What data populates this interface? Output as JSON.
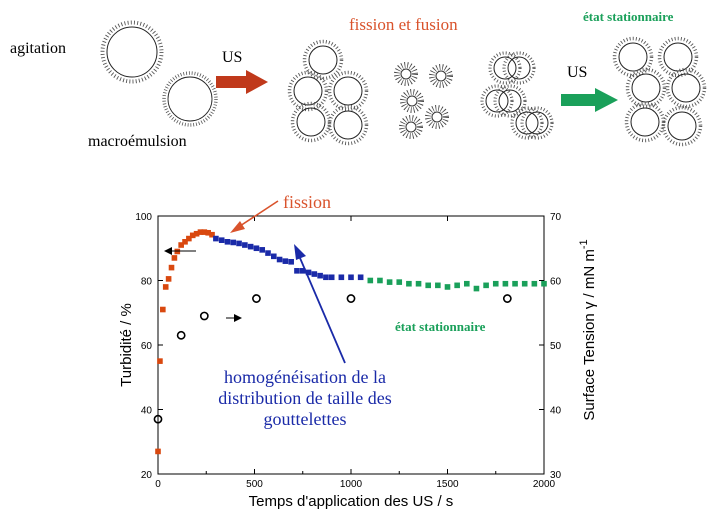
{
  "diagram": {
    "label_agitation": "agitation",
    "label_macroemulsion": "macroémulsion",
    "label_us_1": "US",
    "label_fission_fusion": "fission et fusion",
    "label_etat_stationnaire_top": "état stationnaire",
    "label_us_2": "US",
    "colors": {
      "arrow_us_1": "#c0391b",
      "arrow_us_2": "#1aa05a",
      "fission_fusion_text": "#d9532c",
      "stationnaire_text": "#1aa05a"
    }
  },
  "chart_data": {
    "type": "scatter",
    "xlabel": "Temps d'application des US / s",
    "ylabel_left": "Turbidité / %",
    "ylabel_right": "Surface Tension γ / mN m",
    "ylabel_right_exponent": "-1",
    "xlim": [
      0,
      2000
    ],
    "ylim_left": [
      20,
      100
    ],
    "ylim_right": [
      30,
      70
    ],
    "x_ticks": [
      "0",
      "500",
      "1000",
      "1500",
      "2000"
    ],
    "y_left_ticks": [
      "20",
      "40",
      "60",
      "80",
      "100"
    ],
    "y_right_ticks": [
      "30",
      "40",
      "50",
      "60",
      "70"
    ],
    "grid": false,
    "annotations": {
      "fission": "fission",
      "homogeneisation": [
        "homogénéisation de la",
        "distribution de taille des",
        "gouttelettes"
      ],
      "etat_stationnaire": "état stationnaire"
    },
    "series": [
      {
        "axis": "left",
        "marker": "square",
        "color": "#d9480f",
        "points": [
          [
            0,
            27
          ],
          [
            10,
            55
          ],
          [
            25,
            71
          ],
          [
            40,
            78
          ],
          [
            55,
            80.5
          ],
          [
            70,
            84
          ],
          [
            85,
            87
          ],
          [
            100,
            89
          ],
          [
            120,
            91
          ],
          [
            140,
            92
          ],
          [
            160,
            93
          ],
          [
            180,
            94
          ],
          [
            200,
            94.5
          ],
          [
            220,
            95
          ],
          [
            240,
            95
          ],
          [
            260,
            94.8
          ],
          [
            280,
            94.2
          ]
        ]
      },
      {
        "axis": "left",
        "marker": "square",
        "color": "#1a2aa8",
        "points": [
          [
            300,
            93
          ],
          [
            330,
            92.5
          ],
          [
            360,
            92
          ],
          [
            390,
            91.8
          ],
          [
            420,
            91.5
          ],
          [
            450,
            91
          ],
          [
            480,
            90.5
          ],
          [
            510,
            90
          ],
          [
            540,
            89.5
          ],
          [
            570,
            88.5
          ],
          [
            600,
            87.5
          ],
          [
            630,
            86.5
          ],
          [
            660,
            86
          ],
          [
            690,
            85.8
          ],
          [
            720,
            83
          ],
          [
            750,
            83
          ],
          [
            780,
            82.5
          ],
          [
            810,
            82
          ],
          [
            840,
            81.5
          ],
          [
            870,
            81
          ],
          [
            900,
            81
          ],
          [
            950,
            81
          ],
          [
            1000,
            81
          ],
          [
            1050,
            81
          ]
        ]
      },
      {
        "axis": "left",
        "marker": "square",
        "color": "#1aa05a",
        "points": [
          [
            1100,
            80
          ],
          [
            1150,
            80
          ],
          [
            1200,
            79.5
          ],
          [
            1250,
            79.5
          ],
          [
            1300,
            79
          ],
          [
            1350,
            79
          ],
          [
            1400,
            78.5
          ],
          [
            1450,
            78.5
          ],
          [
            1500,
            78
          ],
          [
            1550,
            78.5
          ],
          [
            1600,
            79
          ],
          [
            1650,
            77.5
          ],
          [
            1700,
            78.5
          ],
          [
            1750,
            79
          ],
          [
            1800,
            79
          ],
          [
            1850,
            79
          ],
          [
            1900,
            79
          ],
          [
            1950,
            79
          ],
          [
            2000,
            79
          ]
        ]
      },
      {
        "axis": "right",
        "marker": "circle",
        "color": "#000000",
        "points": [
          [
            0,
            38.5
          ],
          [
            120,
            51.5
          ],
          [
            240,
            54.5
          ],
          [
            510,
            57.2
          ],
          [
            1000,
            57.2
          ],
          [
            1810,
            57.2
          ]
        ]
      }
    ]
  }
}
